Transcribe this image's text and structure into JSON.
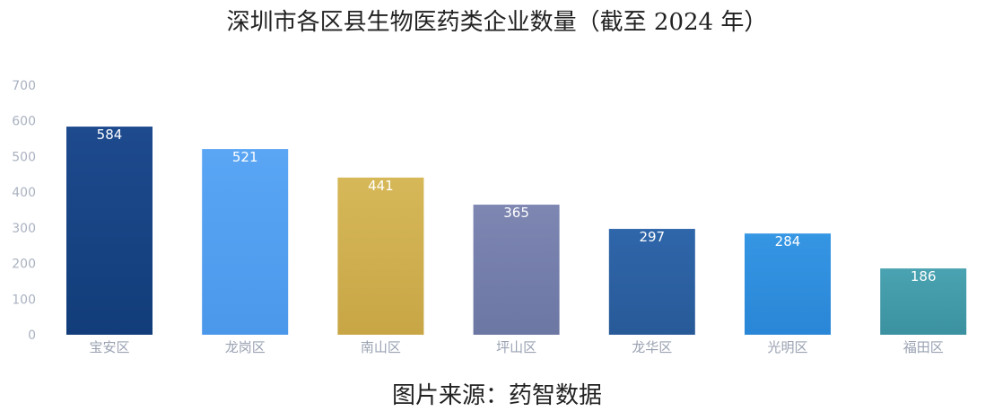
{
  "title": "深圳市各区县生物医药类企业数量（截至 2024 年）",
  "caption": "图片来源：药智数据",
  "chart_data": {
    "type": "bar",
    "title": "深圳市各区县生物医药类企业数量（截至 2024 年）",
    "xlabel": "",
    "ylabel": "",
    "categories": [
      "宝安区",
      "龙岗区",
      "南山区",
      "坪山区",
      "龙华区",
      "光明区",
      "福田区"
    ],
    "values": [
      584,
      521,
      441,
      365,
      297,
      284,
      186
    ],
    "yticks": [
      "0",
      "100",
      "200",
      "300",
      "400",
      "500",
      "600",
      "700"
    ],
    "ylim": [
      0,
      700
    ],
    "grid": false,
    "bar_colors": [
      [
        "#1e4a8e",
        "#123d7a"
      ],
      [
        "#5aa6f5",
        "#4b97ea"
      ],
      [
        "#d6b859",
        "#c8a646"
      ],
      [
        "#7e86b2",
        "#6c77a3"
      ],
      [
        "#2f66aa",
        "#285a98"
      ],
      [
        "#3596e4",
        "#2a86d6"
      ],
      [
        "#4aa3b2",
        "#3b919f"
      ]
    ]
  }
}
